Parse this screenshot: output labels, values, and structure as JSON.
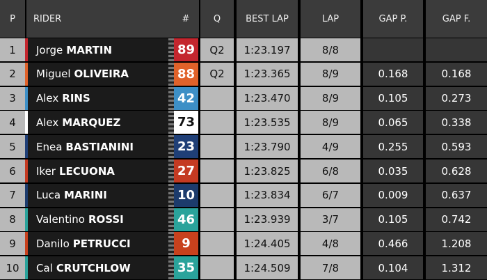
{
  "header": [
    "P",
    "RIDER",
    "#",
    "Q",
    "BEST LAP",
    "LAP",
    "GAP P.",
    "GAP F."
  ],
  "rows": [
    {
      "pos": "1",
      "first": "Jorge",
      "last": "MARTIN",
      "num": "89",
      "color": "#c4262e",
      "text_color": "#ffffff",
      "q": "Q2",
      "best": "1:23.197",
      "lap": "8/8",
      "gap_p": null,
      "gap_f": null
    },
    {
      "pos": "2",
      "first": "Miguel",
      "last": "OLIVEIRA",
      "num": "88",
      "color": "#e0622a",
      "text_color": "#ffffff",
      "q": "Q2",
      "best": "1:23.365",
      "lap": "8/9",
      "gap_p": "0.168",
      "gap_f": "0.168"
    },
    {
      "pos": "3",
      "first": "Alex",
      "last": "RINS",
      "num": "42",
      "color": "#3d8fc6",
      "text_color": "#ffffff",
      "q": null,
      "best": "1:23.470",
      "lap": "8/9",
      "gap_p": "0.105",
      "gap_f": "0.273"
    },
    {
      "pos": "4",
      "first": "Alex",
      "last": "MARQUEZ",
      "num": "73",
      "color": "#ffffff",
      "text_color": "#111111",
      "q": null,
      "best": "1:23.535",
      "lap": "8/9",
      "gap_p": "0.065",
      "gap_f": "0.338"
    },
    {
      "pos": "5",
      "first": "Enea",
      "last": "BASTIANINI",
      "num": "23",
      "color": "#1f3f77",
      "text_color": "#ffffff",
      "q": null,
      "best": "1:23.790",
      "lap": "4/9",
      "gap_p": "0.255",
      "gap_f": "0.593"
    },
    {
      "pos": "6",
      "first": "Iker",
      "last": "LECUONA",
      "num": "27",
      "color": "#c43a22",
      "text_color": "#ffffff",
      "q": null,
      "best": "1:23.825",
      "lap": "6/8",
      "gap_p": "0.035",
      "gap_f": "0.628"
    },
    {
      "pos": "7",
      "first": "Luca",
      "last": "MARINI",
      "num": "10",
      "color": "#1c3b6c",
      "text_color": "#ffffff",
      "q": null,
      "best": "1:23.834",
      "lap": "6/7",
      "gap_p": "0.009",
      "gap_f": "0.637"
    },
    {
      "pos": "8",
      "first": "Valentino",
      "last": "ROSSI",
      "num": "46",
      "color": "#2aa39b",
      "text_color": "#ffffff",
      "q": null,
      "best": "1:23.939",
      "lap": "3/7",
      "gap_p": "0.105",
      "gap_f": "0.742"
    },
    {
      "pos": "9",
      "first": "Danilo",
      "last": "PETRUCCI",
      "num": "9",
      "color": "#c8411d",
      "text_color": "#ffffff",
      "q": null,
      "best": "1:24.405",
      "lap": "4/8",
      "gap_p": "0.466",
      "gap_f": "1.208"
    },
    {
      "pos": "10",
      "first": "Cal",
      "last": "CRUTCHLOW",
      "num": "35",
      "color": "#2aa39b",
      "text_color": "#ffffff",
      "q": null,
      "best": "1:24.509",
      "lap": "7/8",
      "gap_p": "0.104",
      "gap_f": "1.312"
    }
  ]
}
